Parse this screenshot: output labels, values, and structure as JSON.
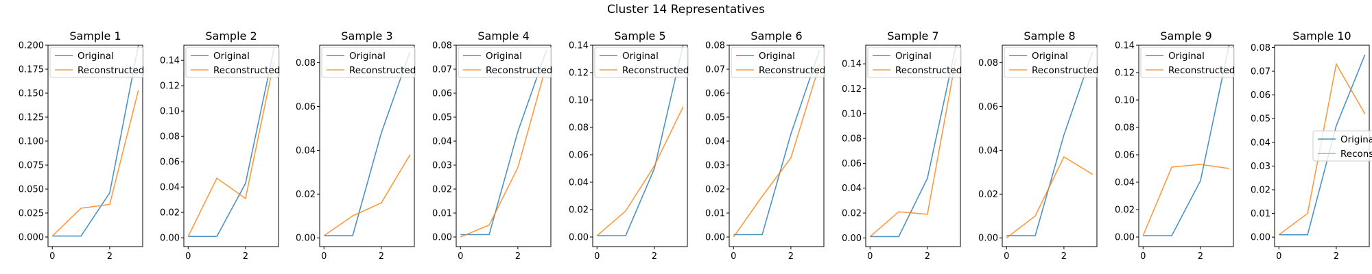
{
  "figure": {
    "title": "Cluster 14 Representatives"
  },
  "colors": {
    "original": "#1f77b4",
    "reconstructed": "#ff7f0e"
  },
  "chart_data": [
    {
      "type": "line",
      "title": "Sample 1",
      "x": [
        0,
        1,
        2,
        3
      ],
      "ylim": [
        -0.01,
        0.2
      ],
      "yticks": [
        0.0,
        0.025,
        0.05,
        0.075,
        0.1,
        0.125,
        0.15,
        0.175,
        0.2
      ],
      "ytick_labels": [
        "0.000",
        "0.025",
        "0.050",
        "0.075",
        "0.100",
        "0.125",
        "0.150",
        "0.175",
        "0.200"
      ],
      "xticks": [
        0,
        2
      ],
      "xtick_labels": [
        "0",
        "2"
      ],
      "legend_loc": "upper left",
      "series": [
        {
          "name": "Original",
          "values": [
            0.001,
            0.001,
            0.046,
            0.2
          ]
        },
        {
          "name": "Reconstructed",
          "values": [
            0.001,
            0.03,
            0.034,
            0.153
          ]
        }
      ]
    },
    {
      "type": "line",
      "title": "Sample 2",
      "x": [
        0,
        1,
        2,
        3
      ],
      "ylim": [
        -0.007,
        0.152
      ],
      "yticks": [
        0.0,
        0.02,
        0.04,
        0.06,
        0.08,
        0.1,
        0.12,
        0.14
      ],
      "ytick_labels": [
        "0.00",
        "0.02",
        "0.04",
        "0.06",
        "0.08",
        "0.10",
        "0.12",
        "0.14"
      ],
      "xticks": [
        0,
        2
      ],
      "xtick_labels": [
        "0",
        "2"
      ],
      "legend_loc": "upper left",
      "series": [
        {
          "name": "Original",
          "values": [
            0.001,
            0.001,
            0.043,
            0.15
          ]
        },
        {
          "name": "Reconstructed",
          "values": [
            0.001,
            0.047,
            0.031,
            0.14
          ]
        }
      ]
    },
    {
      "type": "line",
      "title": "Sample 3",
      "x": [
        0,
        1,
        2,
        3
      ],
      "ylim": [
        -0.004,
        0.088
      ],
      "yticks": [
        0.0,
        0.02,
        0.04,
        0.06,
        0.08
      ],
      "ytick_labels": [
        "0.00",
        "0.02",
        "0.04",
        "0.06",
        "0.08"
      ],
      "xticks": [
        0,
        2
      ],
      "xtick_labels": [
        "0",
        "2"
      ],
      "legend_loc": "upper left",
      "series": [
        {
          "name": "Original",
          "values": [
            0.001,
            0.001,
            0.048,
            0.085
          ]
        },
        {
          "name": "Reconstructed",
          "values": [
            0.001,
            0.01,
            0.016,
            0.038
          ]
        }
      ]
    },
    {
      "type": "line",
      "title": "Sample 4",
      "x": [
        0,
        1,
        2,
        3
      ],
      "ylim": [
        -0.004,
        0.08
      ],
      "yticks": [
        0.0,
        0.01,
        0.02,
        0.03,
        0.04,
        0.05,
        0.06,
        0.07,
        0.08
      ],
      "ytick_labels": [
        "0.00",
        "0.01",
        "0.02",
        "0.03",
        "0.04",
        "0.05",
        "0.06",
        "0.07",
        "0.08"
      ],
      "xticks": [
        0,
        2
      ],
      "xtick_labels": [
        "0",
        "2"
      ],
      "legend_loc": "upper left",
      "series": [
        {
          "name": "Original",
          "values": [
            0.001,
            0.001,
            0.044,
            0.078
          ]
        },
        {
          "name": "Reconstructed",
          "values": [
            0.0,
            0.005,
            0.029,
            0.072
          ]
        }
      ]
    },
    {
      "type": "line",
      "title": "Sample 5",
      "x": [
        0,
        1,
        2,
        3
      ],
      "ylim": [
        -0.007,
        0.14
      ],
      "yticks": [
        0.0,
        0.02,
        0.04,
        0.06,
        0.08,
        0.1,
        0.12,
        0.14
      ],
      "ytick_labels": [
        "0.00",
        "0.02",
        "0.04",
        "0.06",
        "0.08",
        "0.10",
        "0.12",
        "0.14"
      ],
      "xticks": [
        0,
        2
      ],
      "xtick_labels": [
        "0",
        "2"
      ],
      "legend_loc": "upper left",
      "series": [
        {
          "name": "Original",
          "values": [
            0.001,
            0.001,
            0.05,
            0.14
          ]
        },
        {
          "name": "Reconstructed",
          "values": [
            0.001,
            0.019,
            0.052,
            0.095
          ]
        }
      ]
    },
    {
      "type": "line",
      "title": "Sample 6",
      "x": [
        0,
        1,
        2,
        3
      ],
      "ylim": [
        -0.004,
        0.08
      ],
      "yticks": [
        0.0,
        0.01,
        0.02,
        0.03,
        0.04,
        0.05,
        0.06,
        0.07,
        0.08
      ],
      "ytick_labels": [
        "0.00",
        "0.01",
        "0.02",
        "0.03",
        "0.04",
        "0.05",
        "0.06",
        "0.07",
        "0.08"
      ],
      "xticks": [
        0,
        2
      ],
      "xtick_labels": [
        "0",
        "2"
      ],
      "legend_loc": "upper left",
      "series": [
        {
          "name": "Original",
          "values": [
            0.001,
            0.001,
            0.043,
            0.078
          ]
        },
        {
          "name": "Reconstructed",
          "values": [
            0.0,
            0.017,
            0.033,
            0.072
          ]
        }
      ]
    },
    {
      "type": "line",
      "title": "Sample 7",
      "x": [
        0,
        1,
        2,
        3
      ],
      "ylim": [
        -0.007,
        0.155
      ],
      "yticks": [
        0.0,
        0.02,
        0.04,
        0.06,
        0.08,
        0.1,
        0.12,
        0.14
      ],
      "ytick_labels": [
        "0.00",
        "0.02",
        "0.04",
        "0.06",
        "0.08",
        "0.10",
        "0.12",
        "0.14"
      ],
      "xticks": [
        0,
        2
      ],
      "xtick_labels": [
        "0",
        "2"
      ],
      "legend_loc": "upper left",
      "series": [
        {
          "name": "Original",
          "values": [
            0.001,
            0.001,
            0.048,
            0.155
          ]
        },
        {
          "name": "Reconstructed",
          "values": [
            0.001,
            0.021,
            0.019,
            0.145
          ]
        }
      ]
    },
    {
      "type": "line",
      "title": "Sample 8",
      "x": [
        0,
        1,
        2,
        3
      ],
      "ylim": [
        -0.004,
        0.088
      ],
      "yticks": [
        0.0,
        0.02,
        0.04,
        0.06,
        0.08
      ],
      "ytick_labels": [
        "0.00",
        "0.02",
        "0.04",
        "0.06",
        "0.08"
      ],
      "xticks": [
        0,
        2
      ],
      "xtick_labels": [
        "0",
        "2"
      ],
      "legend_loc": "upper left",
      "series": [
        {
          "name": "Original",
          "values": [
            0.001,
            0.001,
            0.047,
            0.085
          ]
        },
        {
          "name": "Reconstructed",
          "values": [
            0.0,
            0.01,
            0.037,
            0.029
          ]
        }
      ]
    },
    {
      "type": "line",
      "title": "Sample 9",
      "x": [
        0,
        1,
        2,
        3
      ],
      "ylim": [
        -0.007,
        0.14
      ],
      "yticks": [
        0.0,
        0.02,
        0.04,
        0.06,
        0.08,
        0.1,
        0.12,
        0.14
      ],
      "ytick_labels": [
        "0.00",
        "0.02",
        "0.04",
        "0.06",
        "0.08",
        "0.10",
        "0.12",
        "0.14"
      ],
      "xticks": [
        0,
        2
      ],
      "xtick_labels": [
        "0",
        "2"
      ],
      "legend_loc": "upper left",
      "series": [
        {
          "name": "Original",
          "values": [
            0.001,
            0.001,
            0.041,
            0.14
          ]
        },
        {
          "name": "Reconstructed",
          "values": [
            0.001,
            0.051,
            0.053,
            0.05
          ]
        }
      ]
    },
    {
      "type": "line",
      "title": "Sample 10",
      "x": [
        0,
        1,
        2,
        3
      ],
      "ylim": [
        -0.004,
        0.081
      ],
      "yticks": [
        0.0,
        0.01,
        0.02,
        0.03,
        0.04,
        0.05,
        0.06,
        0.07,
        0.08
      ],
      "ytick_labels": [
        "0.00",
        "0.01",
        "0.02",
        "0.03",
        "0.04",
        "0.05",
        "0.06",
        "0.07",
        "0.08"
      ],
      "xticks": [
        0,
        2
      ],
      "xtick_labels": [
        "0",
        "2"
      ],
      "legend_loc": "center right",
      "series": [
        {
          "name": "Original",
          "values": [
            0.001,
            0.001,
            0.047,
            0.077
          ]
        },
        {
          "name": "Reconstructed",
          "values": [
            0.001,
            0.01,
            0.073,
            0.052
          ]
        }
      ]
    }
  ]
}
